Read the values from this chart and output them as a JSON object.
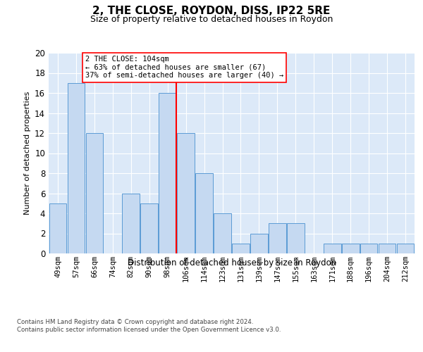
{
  "title": "2, THE CLOSE, ROYDON, DISS, IP22 5RE",
  "subtitle": "Size of property relative to detached houses in Roydon",
  "xlabel": "Distribution of detached houses by size in Roydon",
  "ylabel": "Number of detached properties",
  "categories": [
    "49sqm",
    "57sqm",
    "66sqm",
    "74sqm",
    "82sqm",
    "90sqm",
    "98sqm",
    "106sqm",
    "114sqm",
    "123sqm",
    "131sqm",
    "139sqm",
    "147sqm",
    "155sqm",
    "163sqm",
    "171sqm",
    "188sqm",
    "196sqm",
    "204sqm",
    "212sqm"
  ],
  "values": [
    5,
    17,
    12,
    0,
    6,
    5,
    16,
    12,
    8,
    4,
    1,
    2,
    3,
    3,
    0,
    1,
    1,
    1,
    1,
    1
  ],
  "bar_color": "#c5d9f1",
  "bar_edge_color": "#5b9bd5",
  "highlight_index": 6,
  "highlight_line_color": "#ff0000",
  "annotation_line1": "2 THE CLOSE: 104sqm",
  "annotation_line2": "← 63% of detached houses are smaller (67)",
  "annotation_line3": "37% of semi-detached houses are larger (40) →",
  "annotation_box_color": "#ffffff",
  "annotation_box_edge": "#ff0000",
  "ylim": [
    0,
    20
  ],
  "yticks": [
    0,
    2,
    4,
    6,
    8,
    10,
    12,
    14,
    16,
    18,
    20
  ],
  "plot_bg_color": "#dce9f8",
  "footer_line1": "Contains HM Land Registry data © Crown copyright and database right 2024.",
  "footer_line2": "Contains public sector information licensed under the Open Government Licence v3.0."
}
